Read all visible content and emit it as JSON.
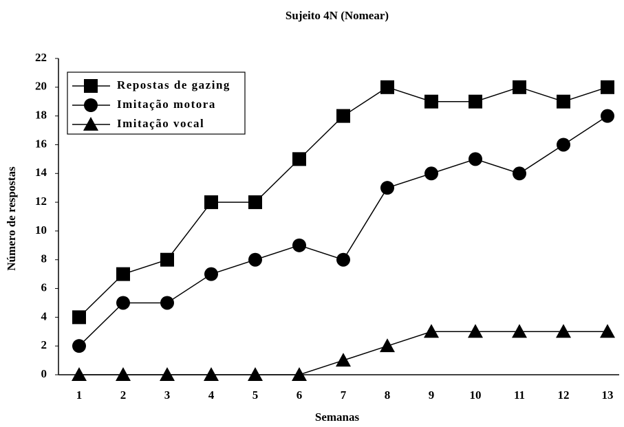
{
  "chart_data": {
    "type": "line",
    "title": "Sujeito 4N (Nomear)",
    "x_label": "Semanas",
    "y_label": "Número de respostas",
    "categories": [
      "1",
      "2",
      "3",
      "4",
      "5",
      "6",
      "7",
      "8",
      "9",
      "10",
      "11",
      "12",
      "13"
    ],
    "series": [
      {
        "name": "Repostas de gazing",
        "color": "#000000",
        "marker": "square",
        "values": [
          4,
          7,
          8,
          12,
          12,
          15,
          18,
          20,
          19,
          19,
          20,
          19,
          20
        ]
      },
      {
        "name": "Imitação motora",
        "color": "#000000",
        "marker": "circle",
        "values": [
          2,
          5,
          5,
          7,
          8,
          9,
          8,
          13,
          14,
          15,
          14,
          16,
          18
        ]
      },
      {
        "name": "Imitação vocal",
        "color": "#000000",
        "marker": "triangle",
        "values": [
          0,
          0,
          0,
          0,
          0,
          0,
          1,
          2,
          3,
          3,
          3,
          3,
          3
        ]
      }
    ],
    "ylim": [
      0,
      22
    ],
    "yticks": [
      0,
      2,
      4,
      6,
      8,
      10,
      12,
      14,
      16,
      18,
      20,
      22
    ],
    "legend": "upper left"
  }
}
